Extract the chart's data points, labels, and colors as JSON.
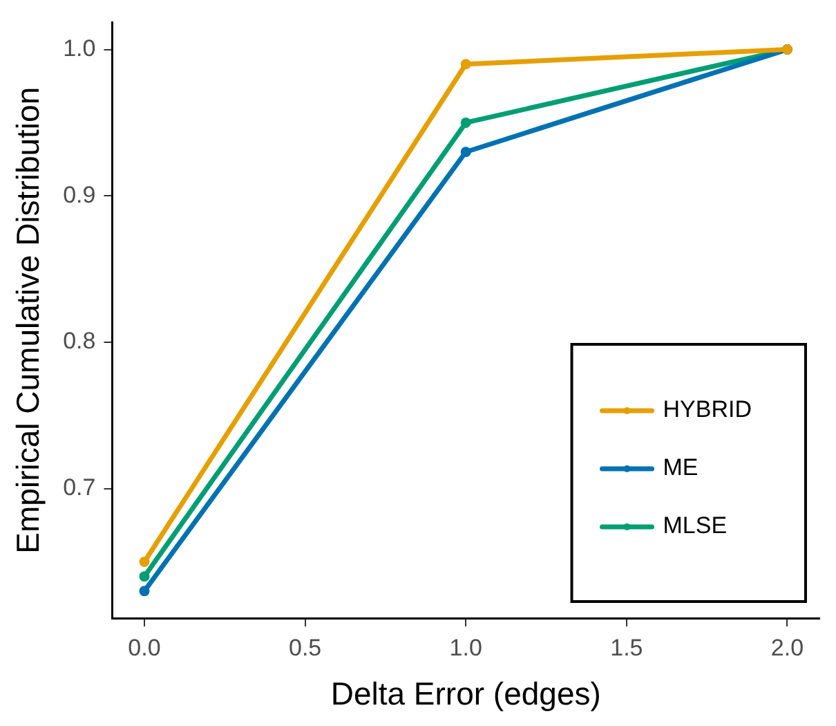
{
  "chart_data": {
    "type": "line",
    "xlabel": "Delta Error (edges)",
    "ylabel": "Empirical Cumulative Distribution",
    "x": [
      0,
      1,
      2
    ],
    "series": [
      {
        "name": "HYBRID",
        "color": "#e69f00",
        "values": [
          0.65,
          0.99,
          1.0
        ]
      },
      {
        "name": "ME",
        "color": "#0072b2",
        "values": [
          0.63,
          0.93,
          1.0
        ]
      },
      {
        "name": "MLSE",
        "color": "#009e73",
        "values": [
          0.64,
          0.95,
          1.0
        ]
      }
    ],
    "xlim": [
      -0.1,
      2.1
    ],
    "xticks": [
      {
        "value": 0,
        "label": "0.0"
      },
      {
        "value": 0.5,
        "label": "0.5"
      },
      {
        "value": 1,
        "label": "1.0"
      },
      {
        "value": 1.5,
        "label": "1.5"
      },
      {
        "value": 2,
        "label": "2.0"
      }
    ],
    "ylim": [
      0.6115,
      1.0185
    ],
    "yticks": [
      {
        "value": 0.7,
        "label": "0.7"
      },
      {
        "value": 0.8,
        "label": "0.8"
      },
      {
        "value": 0.9,
        "label": "0.9"
      },
      {
        "value": 1,
        "label": "1.0"
      }
    ],
    "grid": false,
    "legend": "bottom right",
    "marker": "circle",
    "line_style": "solid"
  }
}
